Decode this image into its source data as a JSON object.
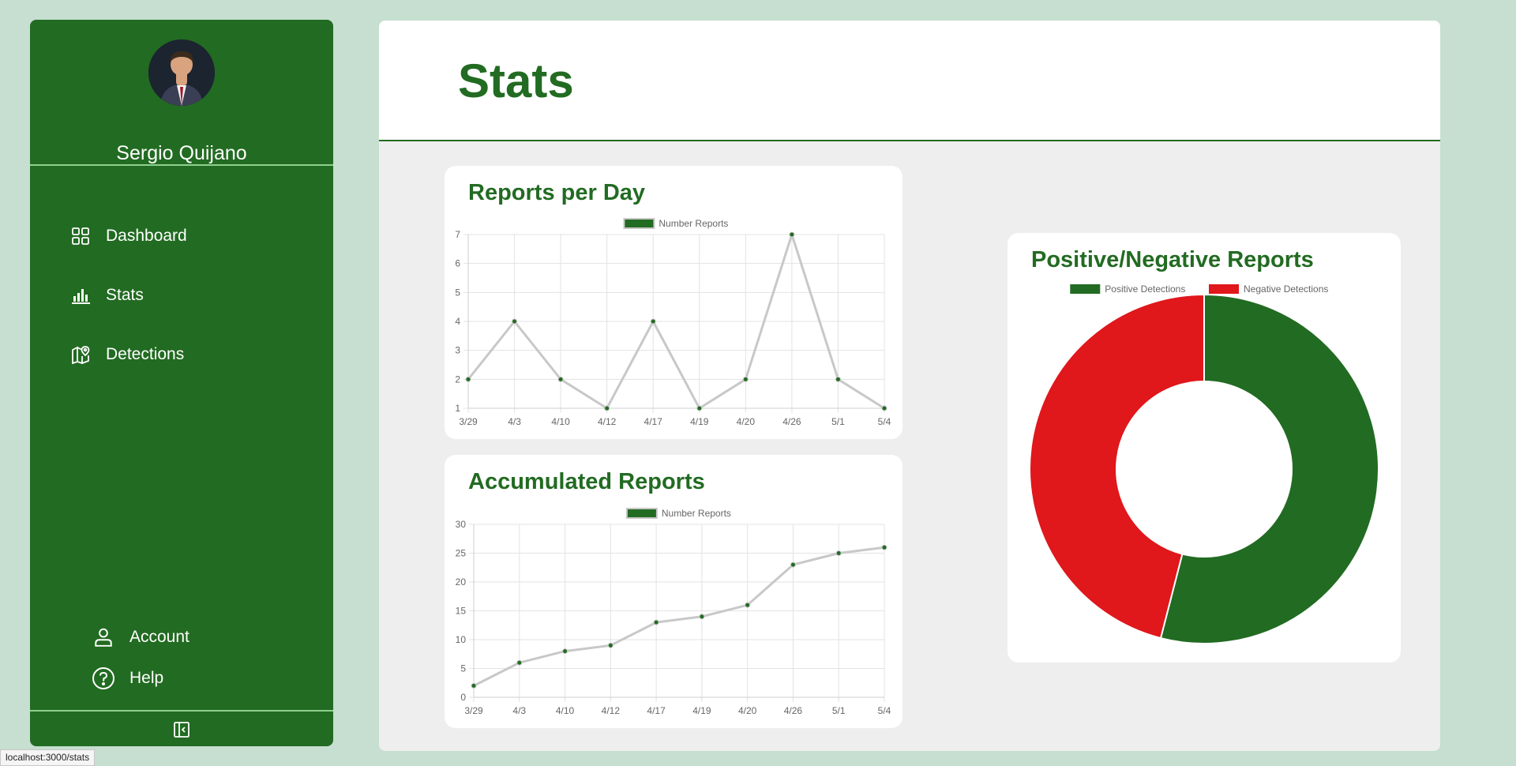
{
  "user": {
    "name": "Sergio Quijano"
  },
  "nav": {
    "items": [
      {
        "label": "Dashboard",
        "icon": "dashboard-icon"
      },
      {
        "label": "Stats",
        "icon": "bar-chart-icon"
      },
      {
        "label": "Detections",
        "icon": "map-pin-icon"
      }
    ],
    "bottom": [
      {
        "label": "Account",
        "icon": "user-icon"
      },
      {
        "label": "Help",
        "icon": "help-circle-icon"
      }
    ]
  },
  "page": {
    "title": "Stats"
  },
  "status_url": "localhost:3000/stats",
  "colors": {
    "brand": "#226b22",
    "negative": "#e0171b",
    "line": "#c8c8c8",
    "background": "#c6dfd0"
  },
  "chart_data": [
    {
      "id": "reports-per-day",
      "type": "line",
      "title": "Reports per Day",
      "categories": [
        "3/29",
        "4/3",
        "4/10",
        "4/12",
        "4/17",
        "4/19",
        "4/20",
        "4/26",
        "5/1",
        "5/4"
      ],
      "series": [
        {
          "name": "Number Reports",
          "values": [
            2,
            4,
            2,
            1,
            4,
            1,
            2,
            7,
            2,
            1
          ]
        }
      ],
      "yticks": [
        1,
        2,
        3,
        4,
        5,
        6,
        7
      ],
      "ylim": [
        1,
        7
      ],
      "grid": true,
      "legend": "top-center"
    },
    {
      "id": "accumulated-reports",
      "type": "line",
      "title": "Accumulated Reports",
      "categories": [
        "3/29",
        "4/3",
        "4/10",
        "4/12",
        "4/17",
        "4/19",
        "4/20",
        "4/26",
        "5/1",
        "5/4"
      ],
      "series": [
        {
          "name": "Number Reports",
          "values": [
            2,
            6,
            8,
            9,
            13,
            14,
            16,
            23,
            25,
            26
          ]
        }
      ],
      "yticks": [
        0,
        5,
        10,
        15,
        20,
        25,
        30
      ],
      "ylim": [
        0,
        30
      ],
      "grid": true,
      "legend": "top-center"
    },
    {
      "id": "positive-negative",
      "type": "pie",
      "title": "Positive/Negative Reports",
      "labels": [
        "Positive Detections",
        "Negative Detections"
      ],
      "values": [
        54,
        46
      ],
      "colors": [
        "#226b22",
        "#e0171b"
      ],
      "legend": "top-center"
    }
  ]
}
